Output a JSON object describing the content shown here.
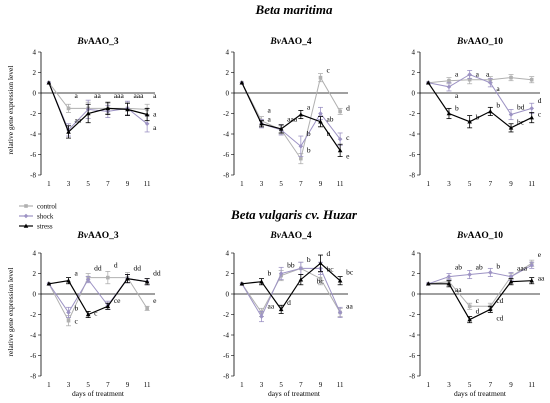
{
  "figure": {
    "section_titles": [
      "Beta maritima",
      "Beta vulgaris cv. Huzar"
    ],
    "y_label": "relative gene expression level",
    "x_label": "days of treatment"
  },
  "legend": [
    {
      "name": "control",
      "color": "#b0b0b0"
    },
    {
      "name": "shock",
      "color": "#9d93c4"
    },
    {
      "name": "stress",
      "color": "#000000"
    }
  ],
  "chart_data": [
    {
      "type": "line",
      "group": "Beta maritima",
      "title_prefix": "Bv",
      "title_rest": "AAO_3",
      "x": [
        1,
        3,
        5,
        7,
        9,
        11
      ],
      "ylim": [
        -8,
        4
      ],
      "yticks": [
        -8,
        -6,
        -4,
        -2,
        0,
        2,
        4
      ],
      "series": [
        {
          "name": "control",
          "values": [
            1,
            -1.5,
            -1.5,
            -1.5,
            -1.5,
            -1.6
          ],
          "err": [
            0,
            0.4,
            0.6,
            0.5,
            0.6,
            0.5
          ]
        },
        {
          "name": "shock",
          "values": [
            1,
            -3.6,
            -1.6,
            -1.8,
            -1.5,
            -3.0
          ],
          "err": [
            0,
            0.6,
            0.9,
            0.6,
            0.7,
            0.8
          ]
        },
        {
          "name": "stress",
          "values": [
            1,
            -3.8,
            -2.0,
            -1.5,
            -1.6,
            -2.1
          ],
          "err": [
            0,
            0.6,
            0.9,
            0.6,
            0.6,
            0.6
          ]
        }
      ],
      "annotations": [
        {
          "x": 3,
          "y": -0.2,
          "text": "a"
        },
        {
          "x": 3,
          "y": -2.6,
          "text": "aa"
        },
        {
          "x": 5,
          "y": -0.2,
          "text": "aa"
        },
        {
          "x": 7,
          "y": -0.2,
          "text": "aaa"
        },
        {
          "x": 9,
          "y": -0.2,
          "text": "aaa"
        },
        {
          "x": 11,
          "y": -0.2,
          "text": "a"
        },
        {
          "x": 11,
          "y": -2.0,
          "text": "a"
        },
        {
          "x": 11,
          "y": -3.3,
          "text": "a"
        }
      ]
    },
    {
      "type": "line",
      "group": "Beta maritima",
      "title_prefix": "Bv",
      "title_rest": "AAO_4",
      "x": [
        1,
        3,
        5,
        7,
        9,
        11
      ],
      "ylim": [
        -8,
        4
      ],
      "yticks": [
        -8,
        -6,
        -4,
        -2,
        0,
        2,
        4
      ],
      "series": [
        {
          "name": "control",
          "values": [
            1,
            -2.7,
            -3.6,
            -6.4,
            1.5,
            -1.8
          ],
          "err": [
            0,
            0.4,
            0.4,
            0.5,
            0.4,
            0.3
          ]
        },
        {
          "name": "shock",
          "values": [
            1,
            -3.0,
            -3.6,
            -5.2,
            -2.0,
            -4.5
          ],
          "err": [
            0,
            0.4,
            0.5,
            1.0,
            0.6,
            0.6
          ]
        },
        {
          "name": "stress",
          "values": [
            1,
            -3.0,
            -3.5,
            -2.1,
            -2.8,
            -5.6
          ],
          "err": [
            0,
            0.3,
            0.4,
            0.4,
            0.5,
            0.6
          ]
        }
      ],
      "annotations": [
        {
          "x": 3,
          "y": -1.6,
          "text": "a"
        },
        {
          "x": 3,
          "y": -2.5,
          "text": "a"
        },
        {
          "x": 5,
          "y": -2.5,
          "text": "aaa"
        },
        {
          "x": 7,
          "y": -1.3,
          "text": "a"
        },
        {
          "x": 7,
          "y": -3.9,
          "text": "b"
        },
        {
          "x": 7,
          "y": -5.5,
          "text": "b"
        },
        {
          "x": 9,
          "y": 2.3,
          "text": "c"
        },
        {
          "x": 9,
          "y": -2.5,
          "text": "ab"
        },
        {
          "x": 9,
          "y": -3.9,
          "text": "b"
        },
        {
          "x": 11,
          "y": -1.4,
          "text": "d"
        },
        {
          "x": 11,
          "y": -4.3,
          "text": "c"
        },
        {
          "x": 11,
          "y": -6.1,
          "text": "e"
        }
      ]
    },
    {
      "type": "line",
      "group": "Beta maritima",
      "title_prefix": "Bv",
      "title_rest": "AAO_10",
      "x": [
        1,
        3,
        5,
        7,
        9,
        11
      ],
      "ylim": [
        -8,
        4
      ],
      "yticks": [
        -8,
        -6,
        -4,
        -2,
        0,
        2,
        4
      ],
      "series": [
        {
          "name": "control",
          "values": [
            1,
            1.2,
            1.3,
            1.3,
            1.5,
            1.3
          ],
          "err": [
            0,
            0.3,
            0.4,
            0.3,
            0.3,
            0.3
          ]
        },
        {
          "name": "shock",
          "values": [
            1,
            0.6,
            1.8,
            1.0,
            -2.1,
            -1.5
          ],
          "err": [
            0,
            0.4,
            0.4,
            0.4,
            0.5,
            0.5
          ]
        },
        {
          "name": "stress",
          "values": [
            1,
            -2.0,
            -2.8,
            -1.8,
            -3.4,
            -2.4
          ],
          "err": [
            0,
            0.5,
            0.6,
            0.4,
            0.4,
            0.5
          ]
        }
      ],
      "annotations": [
        {
          "x": 3,
          "y": 1.9,
          "text": "a"
        },
        {
          "x": 3,
          "y": -0.2,
          "text": "a"
        },
        {
          "x": 3,
          "y": -1.4,
          "text": "b"
        },
        {
          "x": 5,
          "y": 1.9,
          "text": "a"
        },
        {
          "x": 5,
          "y": -2.3,
          "text": "b"
        },
        {
          "x": 6,
          "y": 1.9,
          "text": "a"
        },
        {
          "x": 7,
          "y": 0.5,
          "text": "a"
        },
        {
          "x": 7,
          "y": -1.1,
          "text": "b"
        },
        {
          "x": 9,
          "y": -1.3,
          "text": "bd"
        },
        {
          "x": 9,
          "y": -2.8,
          "text": "bc"
        },
        {
          "x": 11,
          "y": -0.7,
          "text": "d"
        },
        {
          "x": 11,
          "y": -2.0,
          "text": "c"
        }
      ]
    },
    {
      "type": "line",
      "group": "Beta vulgaris cv. Huzar",
      "title_prefix": "Bv",
      "title_rest": "AAO_3",
      "x": [
        1,
        3,
        5,
        7,
        9,
        11
      ],
      "ylim": [
        -8,
        4
      ],
      "yticks": [
        -8,
        -6,
        -4,
        -2,
        0,
        2,
        4
      ],
      "series": [
        {
          "name": "control",
          "values": [
            1,
            -2.6,
            1.6,
            1.6,
            1.6,
            -1.4
          ],
          "err": [
            0,
            0.5,
            0.4,
            0.6,
            0.5,
            0.2
          ]
        },
        {
          "name": "shock",
          "values": [
            1,
            -1.8,
            1.4,
            -1.1,
            1.5,
            1.2
          ],
          "err": [
            0,
            0.5,
            0.3,
            0.4,
            0.4,
            0.3
          ]
        },
        {
          "name": "stress",
          "values": [
            1,
            1.3,
            -2.0,
            -1.2,
            1.5,
            1.2
          ],
          "err": [
            0,
            0.3,
            0.3,
            0.3,
            0.4,
            0.3
          ]
        }
      ],
      "annotations": [
        {
          "x": 3,
          "y": 2.1,
          "text": "a"
        },
        {
          "x": 3,
          "y": -1.3,
          "text": "b"
        },
        {
          "x": 3,
          "y": -2.6,
          "text": "c"
        },
        {
          "x": 5,
          "y": 2.6,
          "text": "dd"
        },
        {
          "x": 5,
          "y": -1.8,
          "text": "c"
        },
        {
          "x": 7,
          "y": 2.9,
          "text": "d"
        },
        {
          "x": 7,
          "y": -0.6,
          "text": "ce"
        },
        {
          "x": 9,
          "y": 2.6,
          "text": "dd"
        },
        {
          "x": 11,
          "y": 2.1,
          "text": "dd"
        },
        {
          "x": 11,
          "y": -0.6,
          "text": "e"
        }
      ]
    },
    {
      "type": "line",
      "group": "Beta vulgaris cv. Huzar",
      "title_prefix": "Bv",
      "title_rest": "AAO_4",
      "x": [
        1,
        3,
        5,
        7,
        9,
        11
      ],
      "ylim": [
        -8,
        4
      ],
      "yticks": [
        -8,
        -6,
        -4,
        -2,
        0,
        2,
        4
      ],
      "series": [
        {
          "name": "control",
          "values": [
            1,
            -1.8,
            1.8,
            2.5,
            1.5,
            -1.8
          ],
          "err": [
            0,
            0.4,
            0.5,
            0.6,
            0.6,
            0.4
          ]
        },
        {
          "name": "shock",
          "values": [
            1,
            -2.2,
            2.0,
            2.5,
            2.5,
            -1.8
          ],
          "err": [
            0,
            0.5,
            0.6,
            0.6,
            0.6,
            0.5
          ]
        },
        {
          "name": "stress",
          "values": [
            1,
            1.2,
            -1.5,
            1.4,
            3.0,
            1.3
          ],
          "err": [
            0,
            0.3,
            0.4,
            0.5,
            0.8,
            0.4
          ]
        }
      ],
      "annotations": [
        {
          "x": 3,
          "y": 2.1,
          "text": "b"
        },
        {
          "x": 3,
          "y": -1.1,
          "text": "aa"
        },
        {
          "x": 5,
          "y": 2.9,
          "text": "bb"
        },
        {
          "x": 5,
          "y": -0.8,
          "text": "d"
        },
        {
          "x": 7,
          "y": 3.4,
          "text": "b"
        },
        {
          "x": 8,
          "y": 1.3,
          "text": "bc"
        },
        {
          "x": 9,
          "y": 4.0,
          "text": "d"
        },
        {
          "x": 9,
          "y": 2.5,
          "text": "bc"
        },
        {
          "x": 11,
          "y": 2.2,
          "text": "bc"
        },
        {
          "x": 11,
          "y": -1.1,
          "text": "aa"
        }
      ]
    },
    {
      "type": "line",
      "group": "Beta vulgaris cv. Huzar",
      "title_prefix": "Bv",
      "title_rest": "AAO_10",
      "x": [
        1,
        3,
        5,
        7,
        9,
        11
      ],
      "ylim": [
        -8,
        4
      ],
      "yticks": [
        -8,
        -6,
        -4,
        -2,
        0,
        2,
        4
      ],
      "series": [
        {
          "name": "control",
          "values": [
            1,
            1.2,
            -1.2,
            -1.2,
            1.7,
            3.0
          ],
          "err": [
            0,
            0.3,
            0.3,
            0.3,
            0.3,
            0.3
          ]
        },
        {
          "name": "shock",
          "values": [
            1,
            1.7,
            1.9,
            2.1,
            1.7,
            2.8
          ],
          "err": [
            0,
            0.3,
            0.4,
            0.4,
            0.4,
            0.3
          ]
        },
        {
          "name": "stress",
          "values": [
            1,
            1.0,
            -2.5,
            -1.5,
            1.2,
            1.3
          ],
          "err": [
            0,
            0.3,
            0.3,
            0.3,
            0.3,
            0.3
          ]
        }
      ],
      "annotations": [
        {
          "x": 3,
          "y": 2.7,
          "text": "ab"
        },
        {
          "x": 3,
          "y": 0.5,
          "text": "aa"
        },
        {
          "x": 5,
          "y": 2.7,
          "text": "ab"
        },
        {
          "x": 5,
          "y": -0.6,
          "text": "c"
        },
        {
          "x": 5,
          "y": -1.6,
          "text": "d"
        },
        {
          "x": 7,
          "y": 2.8,
          "text": "b"
        },
        {
          "x": 7,
          "y": -0.6,
          "text": "cd"
        },
        {
          "x": 7,
          "y": -2.3,
          "text": "cd"
        },
        {
          "x": 9,
          "y": 2.6,
          "text": "aaa"
        },
        {
          "x": 11,
          "y": 3.9,
          "text": "e"
        },
        {
          "x": 11,
          "y": 1.6,
          "text": "aa"
        }
      ]
    }
  ]
}
